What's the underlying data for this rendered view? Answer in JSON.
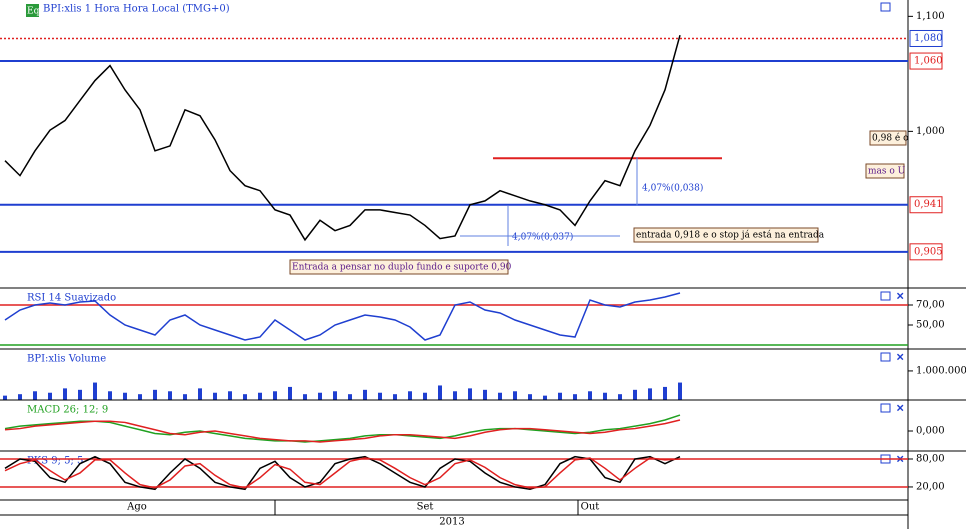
{
  "chart_data": [
    {
      "type": "line",
      "title": "BPI:xlis 1 Hora Hora Local (TMG+0)",
      "log": true,
      "color": "#000000",
      "values": [
        0.976,
        0.964,
        0.984,
        1.001,
        1.009,
        1.026,
        1.043,
        1.056,
        1.035,
        1.018,
        0.984,
        0.988,
        1.018,
        1.013,
        0.993,
        0.968,
        0.956,
        0.952,
        0.937,
        0.933,
        0.914,
        0.929,
        0.921,
        0.925,
        0.937,
        0.937,
        0.935,
        0.933,
        0.925,
        0.915,
        0.917,
        0.941,
        0.944,
        0.952,
        0.948,
        0.944,
        0.941,
        0.937,
        0.925,
        0.944,
        0.96,
        0.956,
        0.984,
        1.005,
        1.035,
        1.083
      ],
      "ylim": [
        0.879,
        1.115
      ],
      "yticks": [
        {
          "value": 1.1,
          "label": "1,100"
        },
        {
          "value": 1.0,
          "label": "1,000"
        }
      ],
      "levels": [
        {
          "value": 1.08,
          "label": "1,080",
          "color": "#e02020",
          "label_color": "#1f3fd0",
          "dotted": true
        },
        {
          "value": 1.06,
          "label": "1,060",
          "color": "#1f3fd0",
          "label_color": "#e02020",
          "dotted": false
        },
        {
          "value": 0.941,
          "label": "0,941",
          "color": "#1f3fd0",
          "label_color": "#e02020",
          "dotted": false
        },
        {
          "value": 0.905,
          "label": "0,905",
          "color": "#1f3fd0",
          "label_color": "#e02020",
          "dotted": false
        }
      ],
      "segment": {
        "value": 0.978,
        "color": "#e02020"
      },
      "annotations": [
        "Entrada a pensar no duplo fundo e suporte 0,90",
        "4,07%(0,037)",
        "4,07%(0,038)",
        "entrada 0,918 e o stop já está na entrada",
        "0,98 é o",
        "mas o U"
      ]
    },
    {
      "type": "line",
      "title": "RSI 14 Suavizado",
      "color": "#1f3fd0",
      "values": [
        55,
        65,
        70,
        72,
        70,
        73,
        74,
        60,
        50,
        45,
        40,
        55,
        60,
        50,
        45,
        40,
        35,
        38,
        55,
        45,
        35,
        40,
        50,
        55,
        60,
        58,
        55,
        48,
        35,
        40,
        70,
        73,
        65,
        62,
        55,
        50,
        45,
        40,
        38,
        75,
        70,
        68,
        73,
        75,
        78,
        82
      ],
      "ylim": [
        27,
        86
      ],
      "yticks": [
        {
          "value": 70,
          "label": "70,00"
        },
        {
          "value": 50,
          "label": "50,00"
        }
      ],
      "hlines": [
        {
          "value": 70,
          "color": "#e02020"
        },
        {
          "value": 30,
          "color": "#20a020"
        }
      ]
    },
    {
      "type": "bar",
      "title": "BPI:xlis Volume",
      "color": "#1f3fd0",
      "values": [
        150000,
        200000,
        300000,
        250000,
        400000,
        350000,
        600000,
        300000,
        250000,
        200000,
        350000,
        300000,
        200000,
        400000,
        250000,
        300000,
        200000,
        250000,
        300000,
        450000,
        200000,
        250000,
        300000,
        200000,
        350000,
        250000,
        200000,
        300000,
        250000,
        500000,
        300000,
        400000,
        350000,
        250000,
        300000,
        200000,
        150000,
        250000,
        200000,
        300000,
        250000,
        200000,
        350000,
        400000,
        450000,
        600000
      ],
      "ylim": [
        0,
        1720000
      ],
      "yticks": [
        {
          "value": 1000000,
          "label": "1.000.000"
        }
      ]
    },
    {
      "type": "line",
      "title": "MACD 26; 12; 9",
      "title_color": "#20a020",
      "series": [
        {
          "color": "#20a020",
          "values": [
            0.002,
            0.004,
            0.005,
            0.006,
            0.007,
            0.008,
            0.008,
            0.007,
            0.004,
            0.001,
            -0.002,
            -0.003,
            -0.001,
            0,
            -0.002,
            -0.004,
            -0.006,
            -0.007,
            -0.008,
            -0.008,
            -0.009,
            -0.008,
            -0.007,
            -0.006,
            -0.004,
            -0.003,
            -0.003,
            -0.004,
            -0.005,
            -0.006,
            -0.004,
            -0.001,
            0.001,
            0.002,
            0.002,
            0.001,
            0,
            -0.001,
            -0.002,
            -0.001,
            0.001,
            0.002,
            0.004,
            0.006,
            0.009,
            0.013
          ]
        },
        {
          "color": "#e02020",
          "values": [
            0.001,
            0.002,
            0.004,
            0.005,
            0.006,
            0.007,
            0.008,
            0.008,
            0.007,
            0.004,
            0.001,
            -0.002,
            -0.003,
            -0.001,
            0,
            -0.002,
            -0.004,
            -0.006,
            -0.007,
            -0.008,
            -0.008,
            -0.009,
            -0.008,
            -0.007,
            -0.006,
            -0.004,
            -0.003,
            -0.003,
            -0.004,
            -0.005,
            -0.006,
            -0.004,
            -0.001,
            0.001,
            0.002,
            0.002,
            0.001,
            0,
            -0.001,
            -0.002,
            -0.001,
            0.001,
            0.002,
            0.004,
            0.006,
            0.009
          ]
        }
      ],
      "ylim": [
        -0.0155,
        0.0245
      ],
      "yticks": [
        {
          "value": 0,
          "label": "0,000"
        }
      ]
    },
    {
      "type": "line",
      "title": "PKS 9; 5; 5",
      "series": [
        {
          "color": "#000000",
          "values": [
            60,
            80,
            75,
            40,
            30,
            70,
            85,
            70,
            30,
            20,
            15,
            50,
            80,
            60,
            30,
            20,
            15,
            60,
            75,
            40,
            20,
            30,
            70,
            80,
            85,
            70,
            50,
            30,
            20,
            60,
            80,
            75,
            50,
            30,
            20,
            15,
            25,
            70,
            85,
            80,
            40,
            30,
            80,
            85,
            70,
            85
          ]
        },
        {
          "color": "#e02020",
          "values": [
            55,
            70,
            78,
            55,
            35,
            50,
            78,
            78,
            50,
            25,
            18,
            35,
            65,
            70,
            45,
            25,
            18,
            40,
            68,
            58,
            30,
            25,
            50,
            75,
            82,
            78,
            60,
            40,
            25,
            40,
            70,
            78,
            62,
            40,
            25,
            18,
            20,
            50,
            78,
            82,
            60,
            35,
            60,
            82,
            78,
            80
          ]
        }
      ],
      "ylim": [
        -8,
        95
      ],
      "yticks": [
        {
          "value": 80,
          "label": "80,00"
        },
        {
          "value": 20,
          "label": "20,00"
        }
      ],
      "hlines": [
        {
          "value": 80,
          "color": "#e02020"
        },
        {
          "value": 20,
          "color": "#e02020"
        }
      ]
    }
  ],
  "x_axis": {
    "labels": [
      "Ago",
      "Set",
      "Out"
    ],
    "year": "2013"
  }
}
